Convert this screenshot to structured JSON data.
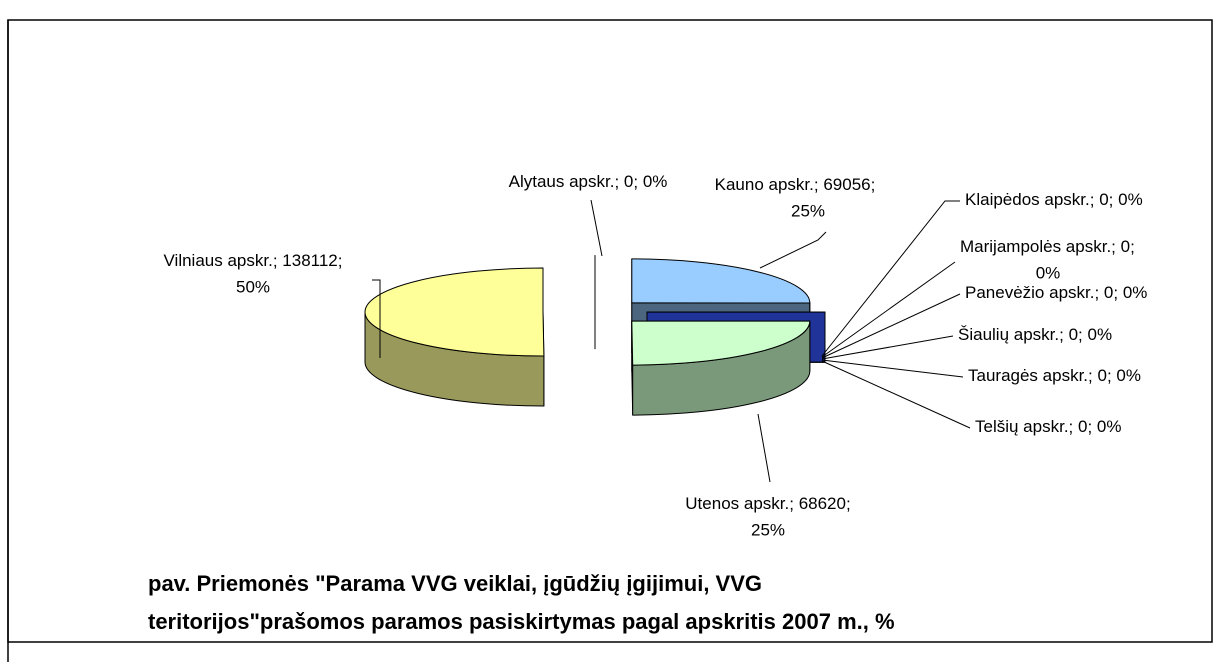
{
  "chart_data": {
    "type": "pie3d",
    "title": [
      "pav. Priemonės \"Parama VVG veiklai, įgūdžių įgijimui, VVG",
      "teritorijos\"prašomos paramos pasiskirtymas pagal apskritis 2007 m., %"
    ],
    "categories": [
      "Alytaus apskr.",
      "Kauno apskr.",
      "Klaipėdos apskr.",
      "Marijampolės apskr.",
      "Panevėžio apskr.",
      "Šiaulių apskr.",
      "Tauragės apskr.",
      "Telšių apskr.",
      "Utenos apskr.",
      "Vilniaus apskr."
    ],
    "values": [
      0,
      69056,
      0,
      0,
      0,
      0,
      0,
      0,
      68620,
      138112
    ],
    "value_labels": [
      "0%",
      "25%",
      "0%",
      "0%",
      "0%",
      "0%",
      "0%",
      "0%",
      "25%",
      "50%"
    ],
    "colors": [
      "#1f3399",
      "#99ccff",
      "#1f3399",
      "#1f3399",
      "#1f3399",
      "#1f3399",
      "#1f3399",
      "#1f3399",
      "#ccffcc",
      "#ffff99"
    ],
    "exploded": true
  }
}
